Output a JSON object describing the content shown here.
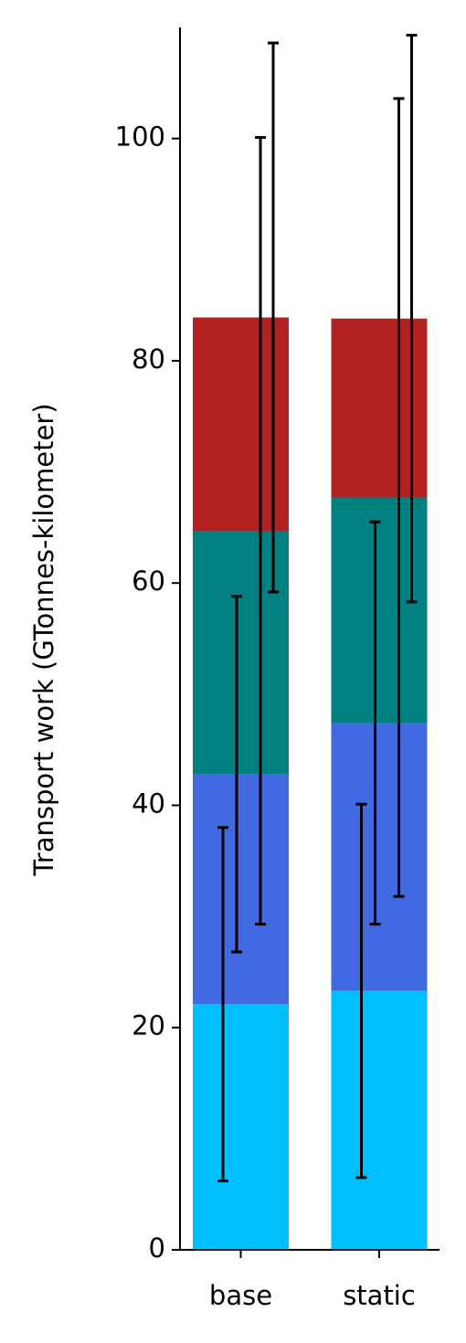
{
  "chart_data": {
    "type": "stacked-bar",
    "y_label": "Transport work (GTonnes-kilometer)",
    "categories": [
      "base",
      "static"
    ],
    "series": [
      {
        "color": "#00bfff",
        "values": [
          22.1,
          23.3
        ],
        "errors": [
          15.9,
          16.8
        ]
      },
      {
        "color": "#4169e1",
        "values": [
          20.7,
          24.1
        ],
        "errors": [
          16.0,
          18.1
        ]
      },
      {
        "color": "#008080",
        "values": [
          21.9,
          20.3
        ],
        "errors": [
          35.4,
          35.9
        ]
      },
      {
        "color": "#b22222",
        "values": [
          19.2,
          16.1
        ],
        "errors": [
          24.7,
          25.5
        ]
      }
    ],
    "ylim": [
      0,
      110
    ],
    "yticks": [
      0,
      20,
      40,
      60,
      80,
      100
    ]
  }
}
